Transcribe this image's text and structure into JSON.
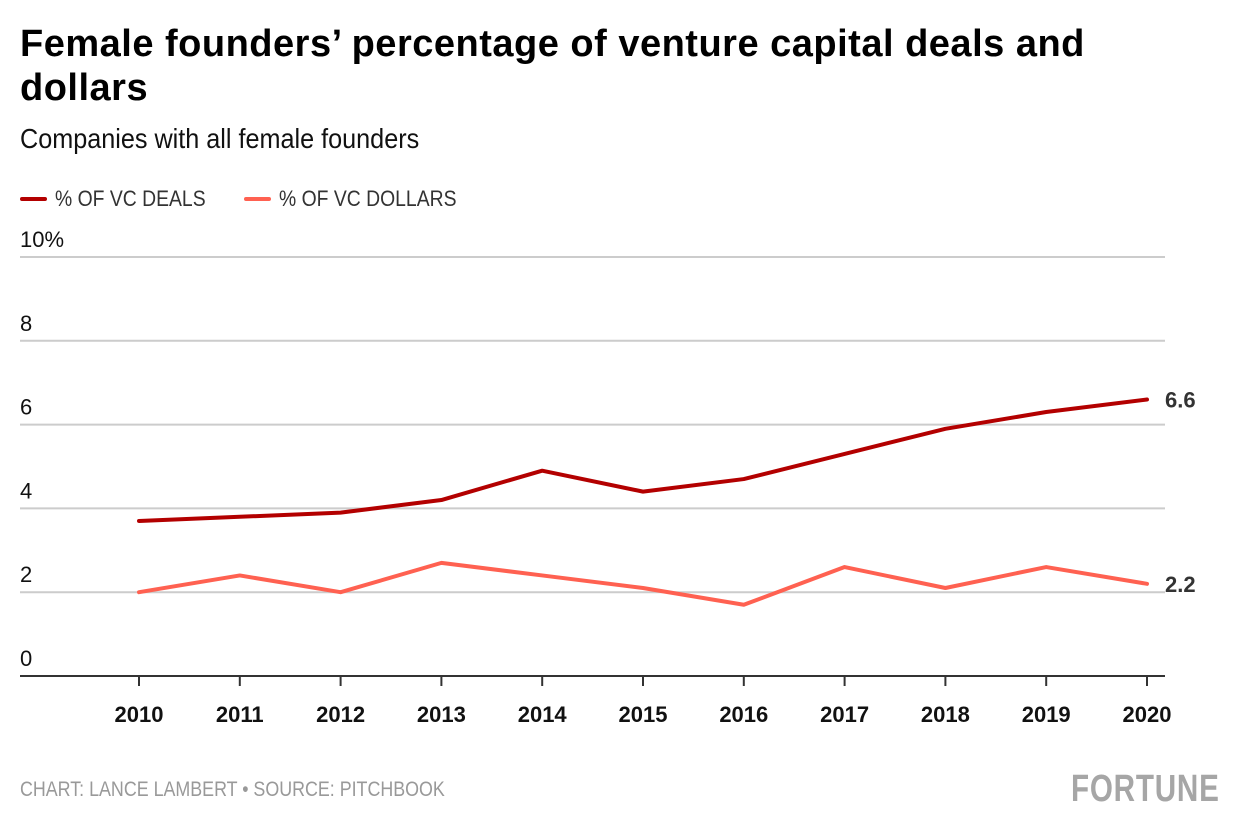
{
  "header": {
    "title": "Female founders’ percentage of venture capital deals and dollars",
    "subtitle": "Companies with all female founders"
  },
  "legend": [
    {
      "label": "% OF VC DEALS",
      "color": "#b30000"
    },
    {
      "label": "% OF VC DOLLARS",
      "color": "#ff6151"
    }
  ],
  "footer": {
    "source": "CHART: LANCE LAMBERT • SOURCE: PITCHBOOK",
    "logo": "FORTUNE"
  },
  "chart_data": {
    "type": "line",
    "title": "Female founders’ percentage of venture capital deals and dollars",
    "subtitle": "Companies with all female founders",
    "xlabel": "",
    "ylabel": "",
    "x": [
      "2010",
      "2011",
      "2012",
      "2013",
      "2014",
      "2015",
      "2016",
      "2017",
      "2018",
      "2019",
      "2020"
    ],
    "ylim": [
      0,
      10
    ],
    "yticks": [
      0,
      2,
      4,
      6,
      8,
      10
    ],
    "ytick_labels": [
      "0",
      "2",
      "4",
      "6",
      "8",
      "10%"
    ],
    "grid": true,
    "legend_position": "top-left",
    "series": [
      {
        "name": "% OF VC DEALS",
        "color": "#b30000",
        "values": [
          3.7,
          3.8,
          3.9,
          4.2,
          4.9,
          4.4,
          4.7,
          5.3,
          5.9,
          6.3,
          6.6
        ],
        "end_label": "6.6"
      },
      {
        "name": "% OF VC DOLLARS",
        "color": "#ff6151",
        "values": [
          2.0,
          2.4,
          2.0,
          2.7,
          2.4,
          2.1,
          1.7,
          2.6,
          2.1,
          2.6,
          2.2
        ],
        "end_label": "2.2"
      }
    ]
  }
}
